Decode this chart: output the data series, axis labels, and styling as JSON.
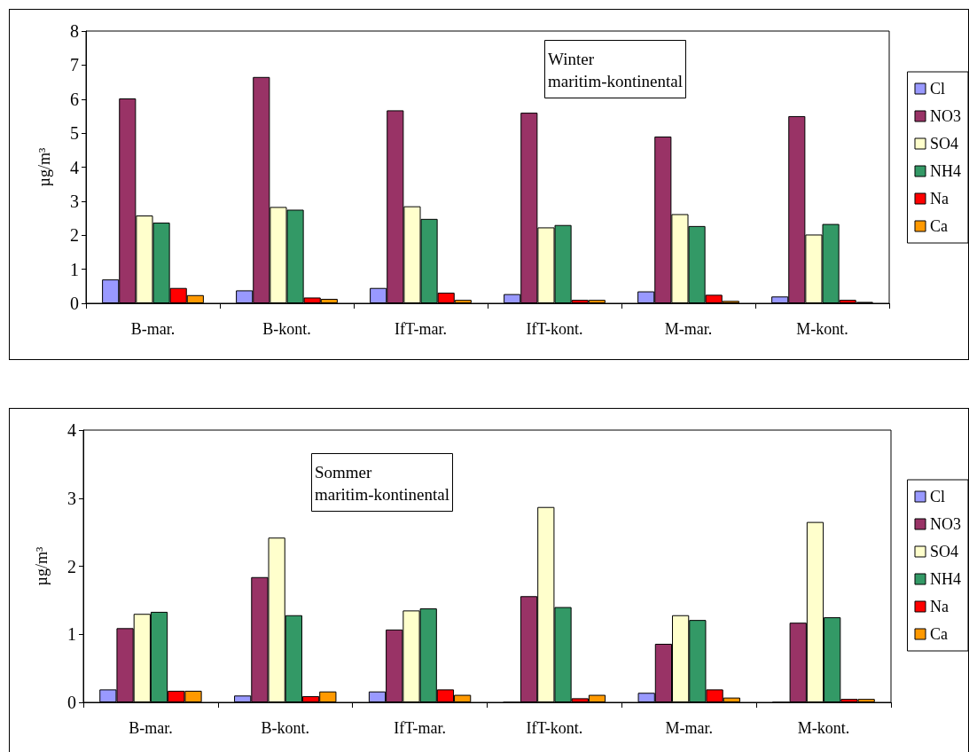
{
  "chart_data": [
    {
      "type": "bar",
      "title": "Winter",
      "subtitle": "maritim-kontinental",
      "ylabel": "µg/m³",
      "categories": [
        "B-mar.",
        "B-kont.",
        "IfT-mar.",
        "IfT-kont.",
        "M-mar.",
        "M-kont."
      ],
      "ylim": [
        0,
        8
      ],
      "yticks": [
        0,
        1,
        2,
        3,
        4,
        5,
        6,
        7,
        8
      ],
      "grid": false,
      "legend": "right",
      "series": [
        {
          "name": "Cl",
          "color": "#9999ff",
          "values": [
            0.7,
            0.38,
            0.45,
            0.27,
            0.35,
            0.2
          ]
        },
        {
          "name": "NO3",
          "color": "#993366",
          "values": [
            6.02,
            6.65,
            5.67,
            5.6,
            4.9,
            5.5
          ]
        },
        {
          "name": "SO4",
          "color": "#ffffcc",
          "values": [
            2.58,
            2.83,
            2.85,
            2.23,
            2.62,
            2.02
          ]
        },
        {
          "name": "NH4",
          "color": "#339966",
          "values": [
            2.37,
            2.75,
            2.48,
            2.3,
            2.27,
            2.33
          ]
        },
        {
          "name": "Na",
          "color": "#ff0000",
          "values": [
            0.45,
            0.17,
            0.31,
            0.1,
            0.25,
            0.1
          ]
        },
        {
          "name": "Ca",
          "color": "#ff9900",
          "values": [
            0.24,
            0.13,
            0.1,
            0.1,
            0.07,
            0.04
          ]
        }
      ]
    },
    {
      "type": "bar",
      "title": "Sommer",
      "subtitle": "maritim-kontinental",
      "ylabel": "µg/m³",
      "categories": [
        "B-mar.",
        "B-kont.",
        "IfT-mar.",
        "IfT-kont.",
        "M-mar.",
        "M-kont."
      ],
      "ylim": [
        0,
        4
      ],
      "yticks": [
        0,
        1,
        2,
        3,
        4
      ],
      "grid": false,
      "legend": "right",
      "series": [
        {
          "name": "Cl",
          "color": "#9999ff",
          "values": [
            0.19,
            0.1,
            0.16,
            0,
            0.14,
            0
          ]
        },
        {
          "name": "NO3",
          "color": "#993366",
          "values": [
            1.09,
            1.84,
            1.07,
            1.56,
            0.86,
            1.17
          ]
        },
        {
          "name": "SO4",
          "color": "#ffffcc",
          "values": [
            1.3,
            2.42,
            1.35,
            2.87,
            1.28,
            2.65
          ]
        },
        {
          "name": "NH4",
          "color": "#339966",
          "values": [
            1.33,
            1.28,
            1.38,
            1.4,
            1.21,
            1.25
          ]
        },
        {
          "name": "Na",
          "color": "#ff0000",
          "values": [
            0.17,
            0.09,
            0.19,
            0.06,
            0.19,
            0.05
          ]
        },
        {
          "name": "Ca",
          "color": "#ff9900",
          "values": [
            0.17,
            0.16,
            0.11,
            0.11,
            0.07,
            0.05
          ]
        }
      ]
    }
  ]
}
